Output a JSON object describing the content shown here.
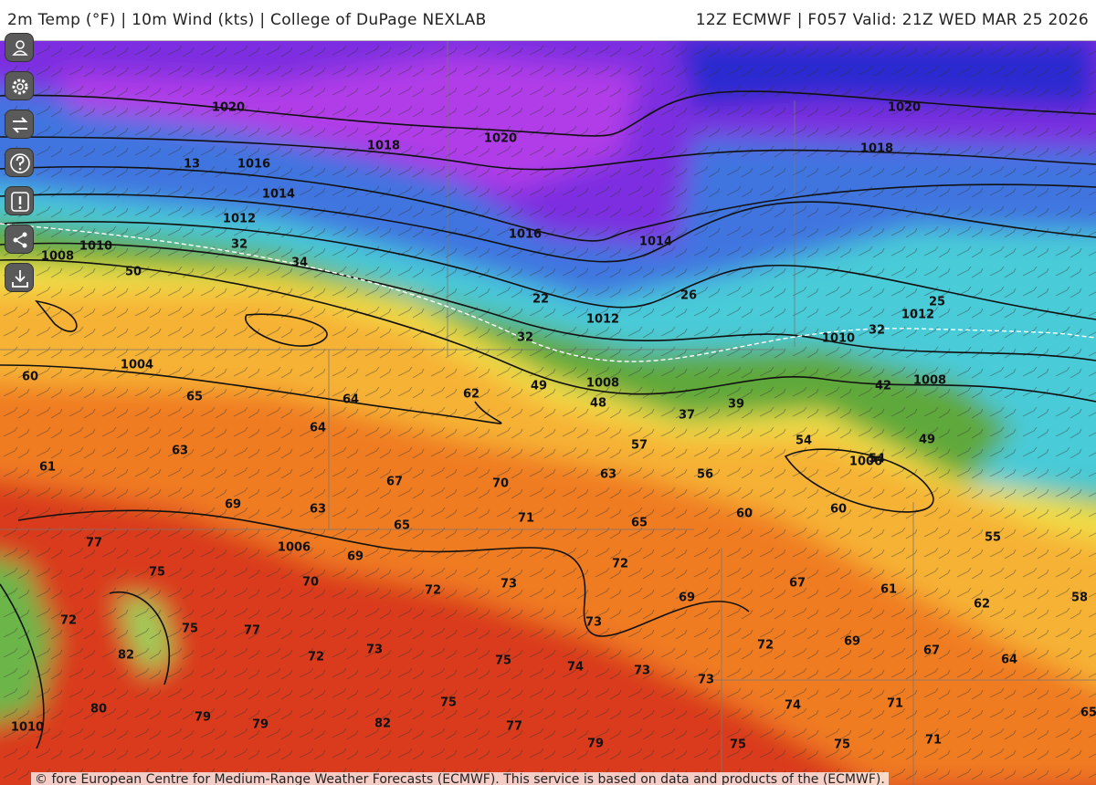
{
  "header": {
    "left": "2m Temp (°F) | 10m Wind (kts) | College of DuPage NEXLAB",
    "right": "12Z ECMWF | F057 Valid: 21Z WED MAR 25 2026"
  },
  "map": {
    "isobar_labels": [
      1020,
      1020,
      1020,
      1018,
      1018,
      1016,
      1016,
      1014,
      1014,
      1012,
      1012,
      1012,
      1010,
      1010,
      1010,
      1008,
      1008,
      1008,
      1006,
      1006,
      1004
    ],
    "temperature_labels": [
      13,
      32,
      32,
      32,
      34,
      22,
      26,
      25,
      50,
      60,
      65,
      64,
      62,
      64,
      49,
      48,
      37,
      39,
      42,
      49,
      54,
      54,
      63,
      61,
      57,
      63,
      56,
      67,
      70,
      69,
      63,
      71,
      65,
      65,
      60,
      60,
      55,
      77,
      75,
      69,
      70,
      72,
      73,
      72,
      67,
      61,
      62,
      58,
      69,
      72,
      75,
      77,
      73,
      82,
      72,
      73,
      75,
      74,
      73,
      72,
      69,
      67,
      64,
      73,
      80,
      75,
      74,
      71,
      65,
      79,
      79,
      82,
      77,
      79,
      75,
      75,
      71
    ]
  },
  "footer": {
    "attribution": "© fore European Centre for Medium-Range Weather Forecasts (ECMWF). This service is based on data and products of the (ECMWF)."
  }
}
